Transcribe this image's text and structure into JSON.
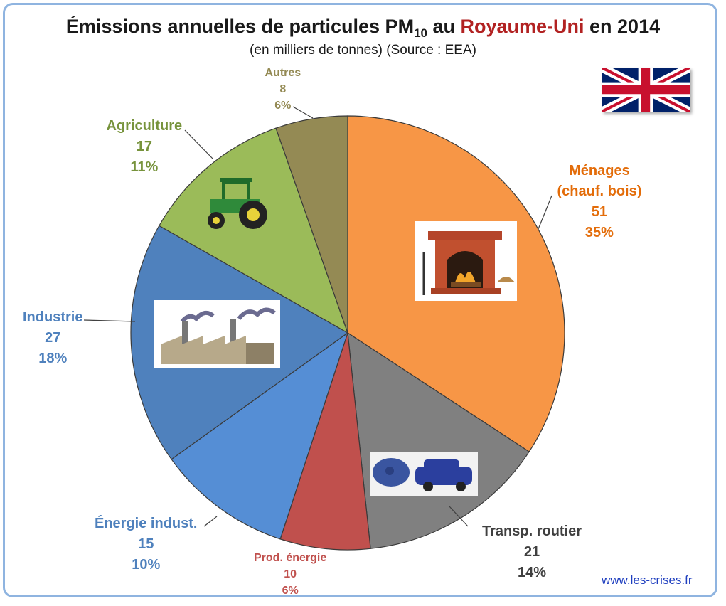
{
  "header": {
    "title_pre": "Émissions annuelles de particules PM",
    "title_sub": "10",
    "title_mid": " au ",
    "title_country": "Royaume-Uni",
    "title_post": " en 2014",
    "subtitle": "(en milliers de tonnes) (Source : EEA)"
  },
  "footer": {
    "source_link": "www.les-crises.fr"
  },
  "flag_icon": "uk-flag-icon",
  "chart_data": {
    "type": "pie",
    "unit": "milliers de tonnes",
    "start_angle_deg": 0,
    "direction": "clockwise",
    "slices": [
      {
        "label": "Ménages",
        "label2": "(chauf. bois)",
        "value": 51,
        "percent": "35%",
        "color": "#f79646",
        "icon": "fireplace-icon"
      },
      {
        "label": "Transp. routier",
        "value": 21,
        "percent": "14%",
        "color": "#808080",
        "icon": "car-smog-icon"
      },
      {
        "label": "Prod. énergie",
        "value": 10,
        "percent": "6%",
        "color": "#c0504d",
        "icon": ""
      },
      {
        "label": "Énergie indust.",
        "value": 15,
        "percent": "10%",
        "color": "#558ed5",
        "icon": ""
      },
      {
        "label": "Industrie",
        "value": 27,
        "percent": "18%",
        "color": "#4f81bd",
        "icon": "factory-icon"
      },
      {
        "label": "Agriculture",
        "value": 17,
        "percent": "11%",
        "color": "#9bbb59",
        "icon": "tractor-icon"
      },
      {
        "label": "Autres",
        "value": 8,
        "percent": "6%",
        "color": "#948a54",
        "icon": ""
      }
    ],
    "label_colors": [
      "#e36c09",
      "#404040",
      "#c0504d",
      "#4f81bd",
      "#4f81bd",
      "#77933c",
      "#948a54"
    ]
  }
}
